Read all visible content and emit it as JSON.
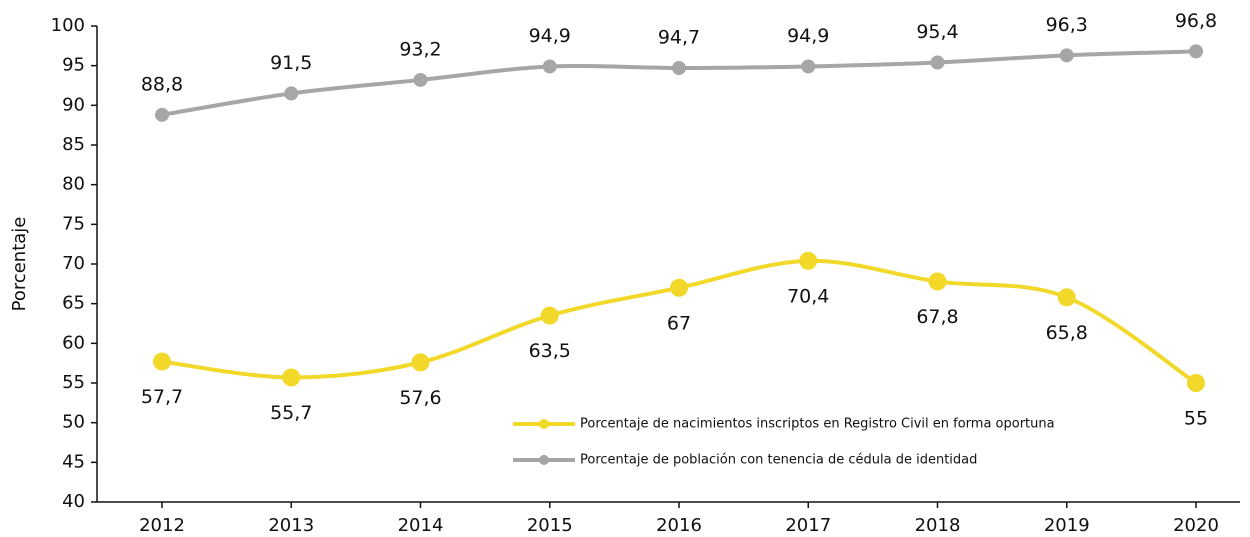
{
  "chart_data": {
    "type": "line",
    "y_label": "Porcentaje",
    "categories": [
      "2012",
      "2013",
      "2014",
      "2015",
      "2016",
      "2017",
      "2018",
      "2019",
      "2020"
    ],
    "series": [
      {
        "name": "Porcentaje de nacimientos inscriptos en Registro Civil en forma oportuna",
        "color": "#f2d829",
        "values": [
          57.7,
          55.7,
          57.6,
          63.5,
          67,
          70.4,
          67.8,
          65.8,
          55
        ],
        "value_labels": [
          "57,7",
          "55,7",
          "57,6",
          "63,5",
          "67",
          "70,4",
          "67,8",
          "65,8",
          "55"
        ]
      },
      {
        "name": "Porcentaje de población con tenencia de cédula de identidad",
        "color": "#a6a6a6",
        "values": [
          88.8,
          91.5,
          93.2,
          94.9,
          94.7,
          94.9,
          95.4,
          96.3,
          96.8
        ],
        "value_labels": [
          "88,8",
          "91,5",
          "93,2",
          "94,9",
          "94,7",
          "94,9",
          "95,4",
          "96,3",
          "96,8"
        ]
      }
    ],
    "ylim": [
      40,
      100
    ],
    "yticks": [
      40,
      45,
      50,
      55,
      60,
      65,
      70,
      75,
      80,
      85,
      90,
      95,
      100
    ],
    "legend": "lower right",
    "grid": false,
    "smooth": true
  }
}
